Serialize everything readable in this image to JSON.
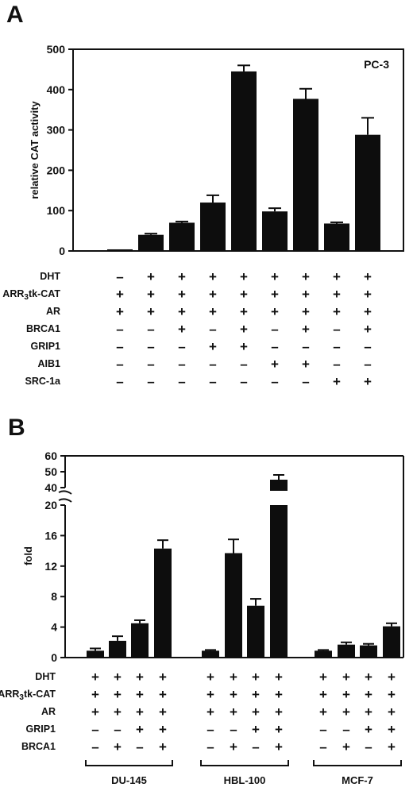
{
  "chart_data": [
    {
      "panel": "A",
      "type": "bar",
      "ylabel": "relative CAT activity",
      "ylim": [
        0,
        500
      ],
      "yticks": [
        "0",
        "100",
        "200",
        "300",
        "400",
        "500"
      ],
      "inset_label": "PC-3",
      "values": [
        4,
        40,
        70,
        120,
        445,
        98,
        377,
        68,
        288
      ],
      "errors": [
        1,
        3,
        3,
        18,
        15,
        8,
        25,
        3,
        42
      ],
      "conditions": [
        {
          "label": "DHT",
          "signs": [
            "-",
            "+",
            "+",
            "+",
            "+",
            "+",
            "+",
            "+",
            "+"
          ]
        },
        {
          "label": "ARR3tk-CAT",
          "signs": [
            "+",
            "+",
            "+",
            "+",
            "+",
            "+",
            "+",
            "+",
            "+"
          ]
        },
        {
          "label": "AR",
          "signs": [
            "+",
            "+",
            "+",
            "+",
            "+",
            "+",
            "+",
            "+",
            "+"
          ]
        },
        {
          "label": "BRCA1",
          "signs": [
            "-",
            "-",
            "+",
            "-",
            "+",
            "-",
            "+",
            "-",
            "+"
          ]
        },
        {
          "label": "GRIP1",
          "signs": [
            "-",
            "-",
            "-",
            "+",
            "+",
            "-",
            "-",
            "-",
            "-"
          ]
        },
        {
          "label": "AIB1",
          "signs": [
            "-",
            "-",
            "-",
            "-",
            "-",
            "+",
            "+",
            "-",
            "-"
          ]
        },
        {
          "label": "SRC-1a",
          "signs": [
            "-",
            "-",
            "-",
            "-",
            "-",
            "-",
            "-",
            "+",
            "+"
          ]
        }
      ]
    },
    {
      "panel": "B",
      "type": "bar",
      "ylabel": "fold",
      "ylim": [
        0,
        60
      ],
      "axis_break": [
        20,
        40
      ],
      "yticks": [
        "0",
        "4",
        "8",
        "12",
        "16",
        "20",
        "40",
        "50",
        "60"
      ],
      "groups": [
        "DU-145",
        "HBL-100",
        "MCF-7"
      ],
      "values": [
        0.9,
        2.2,
        4.5,
        14.3,
        0.9,
        13.7,
        6.8,
        45,
        0.9,
        1.7,
        1.6,
        4.1
      ],
      "errors": [
        0.3,
        0.6,
        0.4,
        1.1,
        0.1,
        1.8,
        0.9,
        3,
        0.1,
        0.3,
        0.2,
        0.4
      ],
      "conditions": [
        {
          "label": "DHT",
          "signs": [
            "+",
            "+",
            "+",
            "+",
            "+",
            "+",
            "+",
            "+",
            "+",
            "+",
            "+",
            "+"
          ]
        },
        {
          "label": "ARR3tk-CAT",
          "signs": [
            "+",
            "+",
            "+",
            "+",
            "+",
            "+",
            "+",
            "+",
            "+",
            "+",
            "+",
            "+"
          ]
        },
        {
          "label": "AR",
          "signs": [
            "+",
            "+",
            "+",
            "+",
            "+",
            "+",
            "+",
            "+",
            "+",
            "+",
            "+",
            "+"
          ]
        },
        {
          "label": "GRIP1",
          "signs": [
            "-",
            "-",
            "+",
            "+",
            "-",
            "-",
            "+",
            "+",
            "-",
            "-",
            "+",
            "+"
          ]
        },
        {
          "label": "BRCA1",
          "signs": [
            "-",
            "+",
            "-",
            "+",
            "-",
            "+",
            "-",
            "+",
            "-",
            "+",
            "-",
            "+"
          ]
        }
      ]
    }
  ]
}
